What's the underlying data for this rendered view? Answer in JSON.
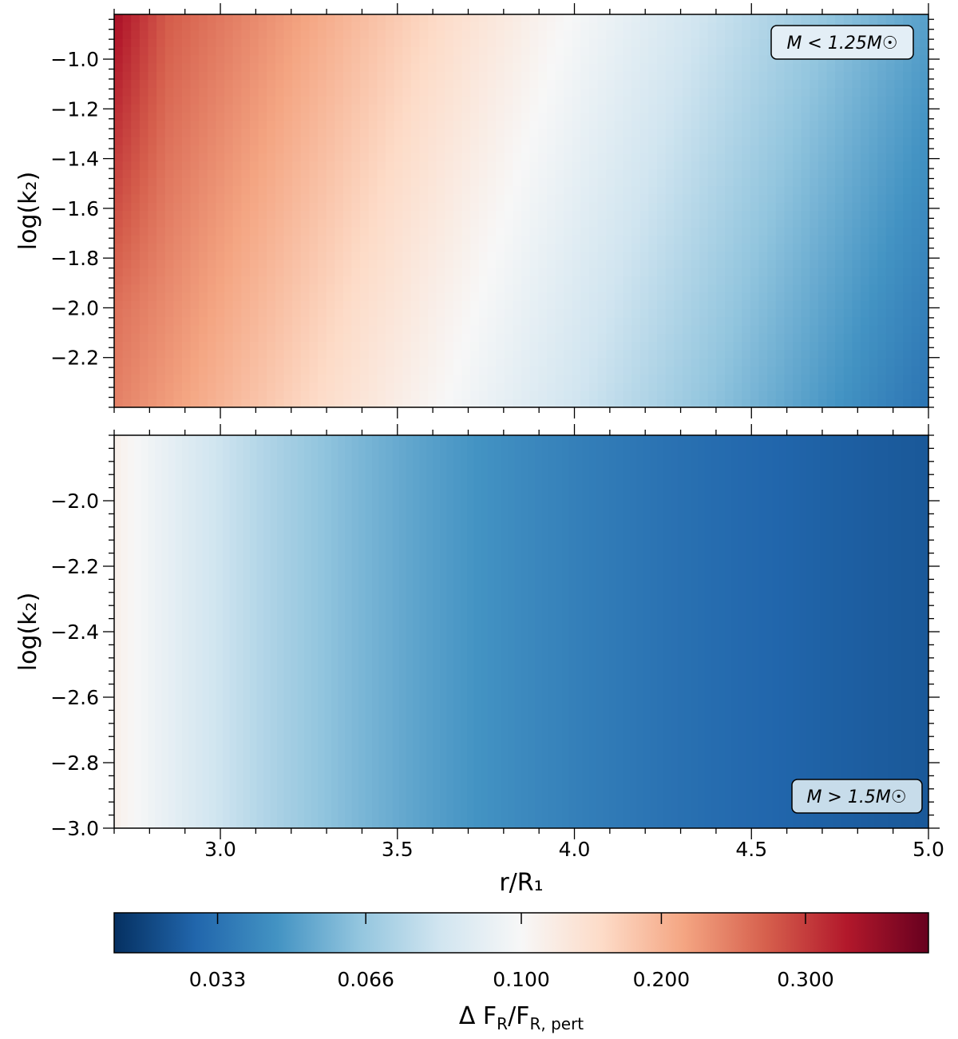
{
  "chart_data": [
    {
      "type": "heatmap",
      "panel": "top",
      "annotation": "M < 1.25M☉",
      "xlabel": "r/R₁",
      "ylabel": "log(k₂)",
      "xlim": [
        2.7,
        5.0
      ],
      "ylim": [
        -2.4,
        -0.82
      ],
      "y_ticks": [
        "−1.0",
        "−1.2",
        "−1.4",
        "−1.6",
        "−1.8",
        "−2.0",
        "−2.2"
      ],
      "y_tick_values": [
        -1.0,
        -1.2,
        -1.4,
        -1.6,
        -1.8,
        -2.0,
        -2.2
      ],
      "x_ticks_labeled": false,
      "pattern": "value decreases with r/R₁ and with lower log(k₂); highest (~0.35) at small r and high log(k₂), lowest (~0.03) at large r and low log(k₂)"
    },
    {
      "type": "heatmap",
      "panel": "bottom",
      "annotation": "M > 1.5M☉",
      "xlabel": "r/R₁",
      "ylabel": "log(k₂)",
      "xlim": [
        2.7,
        5.0
      ],
      "ylim": [
        -3.0,
        -1.8
      ],
      "x_ticks": [
        "3.0",
        "3.5",
        "4.0",
        "4.5",
        "5.0"
      ],
      "x_tick_values": [
        3.0,
        3.5,
        4.0,
        4.5,
        5.0
      ],
      "y_ticks": [
        "−2.0",
        "−2.2",
        "−2.4",
        "−2.6",
        "−2.8",
        "−3.0"
      ],
      "y_tick_values": [
        -2.0,
        -2.2,
        -2.4,
        -2.6,
        -2.8,
        -3.0
      ],
      "pattern": "value depends only on r/R₁, decreasing from ~0.11 at r=2.7 to ~0.02 at r=5.0"
    }
  ],
  "colorbar": {
    "label": "Δ F_R/F_R, pert",
    "label_main": "Δ F",
    "label_sub1": "R",
    "label_mid": "/F",
    "label_sub2": "R, pert",
    "ticks": [
      "0.033",
      "0.066",
      "0.100",
      "0.200",
      "0.300"
    ],
    "tick_values": [
      0.033,
      0.066,
      0.1,
      0.2,
      0.3
    ],
    "colormap": "RdBu_r",
    "range": [
      0.012,
      0.39
    ],
    "colors": [
      "#053061",
      "#2166ac",
      "#4393c3",
      "#92c5de",
      "#d1e5f0",
      "#f7f7f7",
      "#fddbc7",
      "#f4a582",
      "#d6604d",
      "#b2182b",
      "#67001f"
    ]
  }
}
